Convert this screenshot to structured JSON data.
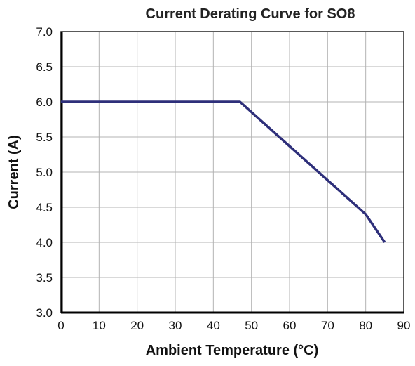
{
  "chart_data": {
    "type": "line",
    "title": "Current Derating Curve for SO8",
    "xlabel": "Ambient Temperature (°C)",
    "ylabel": "Current (A)",
    "xlim": [
      0,
      90
    ],
    "ylim": [
      3.0,
      7.0
    ],
    "x_ticks": [
      "0",
      "10",
      "20",
      "30",
      "40",
      "50",
      "60",
      "70",
      "80",
      "90"
    ],
    "y_ticks": [
      "3.0",
      "3.5",
      "4.0",
      "4.5",
      "5.0",
      "5.5",
      "6.0",
      "6.5",
      "7.0"
    ],
    "grid": true,
    "legend": "none",
    "series": [
      {
        "color": "#2e2f7a",
        "x": [
          0,
          47,
          80,
          85
        ],
        "y": [
          6.0,
          6.0,
          4.4,
          4.0
        ]
      }
    ]
  }
}
